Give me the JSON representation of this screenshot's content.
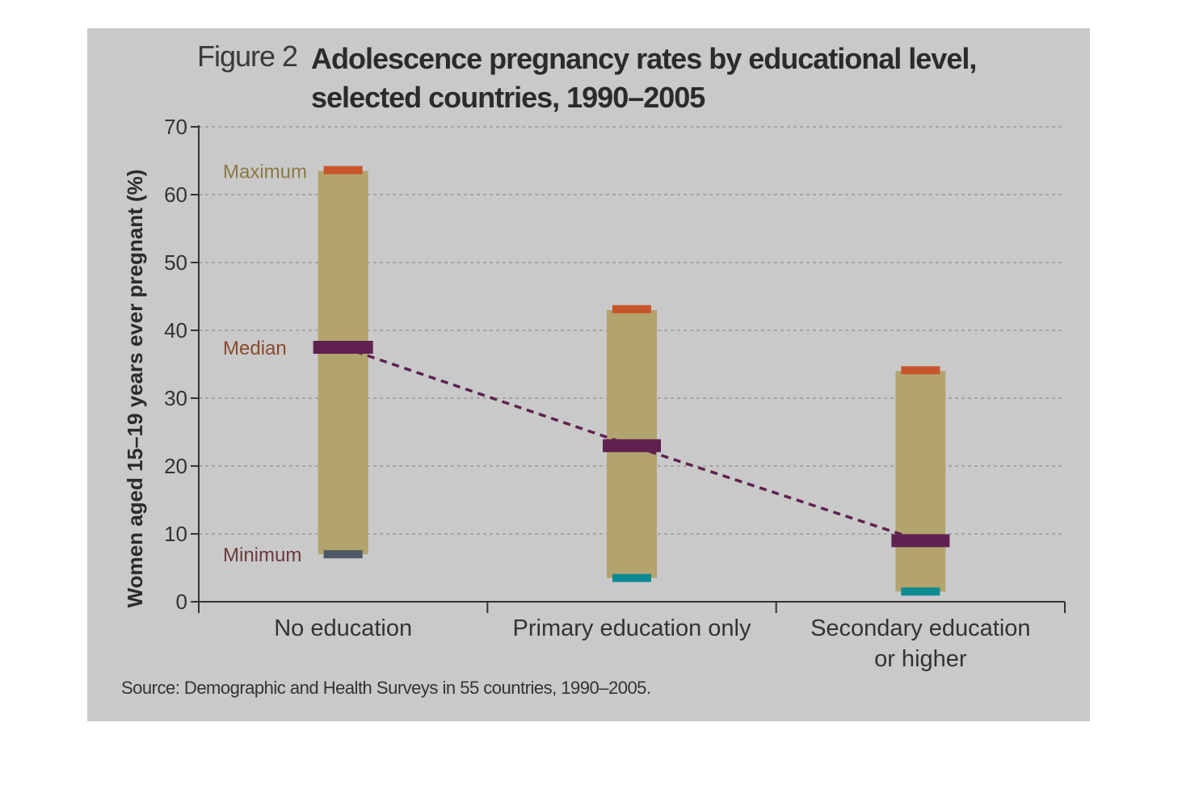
{
  "figure_label": "Figure 2",
  "title": "Adolescence pregnancy rates by educational level, selected countries, 1990–2005",
  "source": "Source: Demographic and Health Surveys in 55 countries, 1990–2005.",
  "colors": {
    "panel_background": "#c9c9c9",
    "range_bar": "#b3a36d",
    "maximum": "#c8542b",
    "median": "#5e2150",
    "minimum_no_education": "#4d5866",
    "minimum": "#0d8a92",
    "trend_line": "#5e2150",
    "grid": "#999999"
  },
  "chart_data": {
    "type": "bar",
    "subtype": "range (min–median–max)",
    "title": "Adolescence pregnancy rates by educational level, selected countries, 1990–2005",
    "ylabel": "Women aged 15–19 years ever pregnant (%)",
    "xlabel": "",
    "ylim": [
      0,
      70
    ],
    "yticks": [
      0,
      10,
      20,
      30,
      40,
      50,
      60,
      70
    ],
    "grid": true,
    "categories": [
      {
        "label_lines": [
          "No education"
        ],
        "min": 7,
        "median": 37.5,
        "max": 63.5
      },
      {
        "label_lines": [
          "Primary education only"
        ],
        "min": 3.5,
        "median": 23,
        "max": 43
      },
      {
        "label_lines": [
          "Secondary education",
          "or higher"
        ],
        "min": 1.5,
        "median": 9,
        "max": 34
      }
    ],
    "annotations": [
      {
        "text": "Maximum",
        "y": 63.5
      },
      {
        "text": "Median",
        "y": 37.5
      },
      {
        "text": "Minimum",
        "y": 7
      }
    ],
    "trend_line": {
      "through": "median",
      "style": "dashed"
    }
  }
}
